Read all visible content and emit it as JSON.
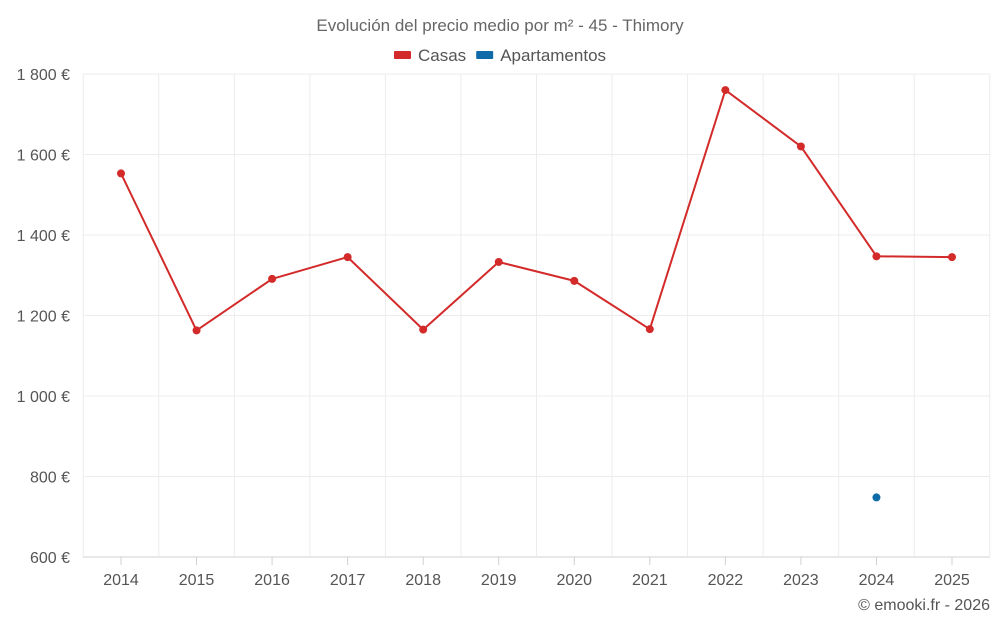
{
  "chart_data": {
    "type": "line",
    "title": "Evolución del precio medio por m² - 45 - Thimory",
    "categories": [
      "2014",
      "2015",
      "2016",
      "2017",
      "2018",
      "2019",
      "2020",
      "2021",
      "2022",
      "2023",
      "2024",
      "2025"
    ],
    "series": [
      {
        "name": "Casas",
        "color": "#d32a2a",
        "values": [
          1553,
          1163,
          1291,
          1345,
          1165,
          1333,
          1286,
          1166,
          1760,
          1620,
          1347,
          1345
        ]
      },
      {
        "name": "Apartamentos",
        "color": "#0f6aa8",
        "values": [
          null,
          null,
          null,
          null,
          null,
          null,
          null,
          null,
          null,
          null,
          748,
          null
        ]
      }
    ],
    "ylim": [
      600,
      1800
    ],
    "yticks": [
      600,
      800,
      1000,
      1200,
      1400,
      1600,
      1800
    ],
    "ytick_labels": [
      "600 €",
      "800 €",
      "1 000 €",
      "1 200 €",
      "1 400 €",
      "1 600 €",
      "1 800 €"
    ],
    "xlabel": "",
    "ylabel": "",
    "grid": true,
    "legend_position": "top-center",
    "credit": "© emooki.fr - 2026"
  }
}
